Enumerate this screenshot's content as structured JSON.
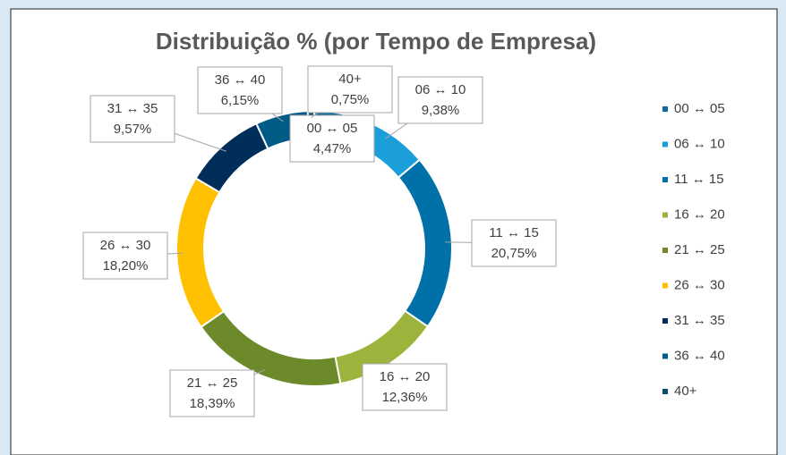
{
  "chart_data": {
    "type": "donut",
    "title": "Distribuição % (por Tempo de Empresa)",
    "categories": [
      "00 ↔ 05",
      "06 ↔ 10",
      "11 ↔ 15",
      "16 ↔ 20",
      "21 ↔ 25",
      "26 ↔ 30",
      "31 ↔ 35",
      "36 ↔ 40",
      "40+"
    ],
    "values": [
      4.47,
      9.38,
      20.75,
      12.36,
      18.39,
      18.2,
      9.57,
      6.15,
      0.75
    ],
    "value_labels": [
      "4,47%",
      "9,38%",
      "20,75%",
      "12,36%",
      "18,39%",
      "18,20%",
      "9,57%",
      "6,15%",
      "0,75%"
    ],
    "colors": [
      "#0f6a9e",
      "#1b9fdb",
      "#0070a8",
      "#9cb43c",
      "#6c8a2a",
      "#ffc000",
      "#002d5a",
      "#005c86",
      "#0d4e6c"
    ],
    "legend": "right"
  }
}
